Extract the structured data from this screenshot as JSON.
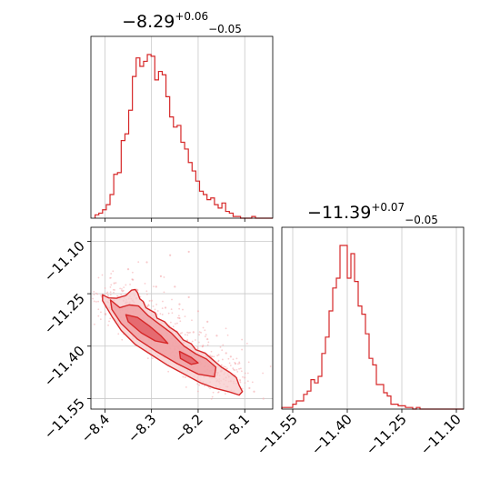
{
  "chart_data": [
    {
      "type": "histogram",
      "panel": "marginal-1",
      "title": {
        "main": "−8.29",
        "sup": "+0.06",
        "sub": "−0.05"
      },
      "xlim": [
        -8.43,
        -8.04
      ],
      "xticks": [
        -8.4,
        -8.3,
        -8.2,
        -8.1
      ],
      "x_tick_labels": [],
      "grid": true,
      "bins": [
        {
          "x": -8.417,
          "y": 2
        },
        {
          "x": -8.409,
          "y": 3
        },
        {
          "x": -8.401,
          "y": 5
        },
        {
          "x": -8.393,
          "y": 8
        },
        {
          "x": -8.385,
          "y": 14
        },
        {
          "x": -8.377,
          "y": 26
        },
        {
          "x": -8.369,
          "y": 27
        },
        {
          "x": -8.361,
          "y": 46
        },
        {
          "x": -8.353,
          "y": 50
        },
        {
          "x": -8.345,
          "y": 64
        },
        {
          "x": -8.337,
          "y": 84
        },
        {
          "x": -8.329,
          "y": 95
        },
        {
          "x": -8.321,
          "y": 90
        },
        {
          "x": -8.313,
          "y": 93
        },
        {
          "x": -8.305,
          "y": 97
        },
        {
          "x": -8.297,
          "y": 96
        },
        {
          "x": -8.289,
          "y": 82
        },
        {
          "x": -8.281,
          "y": 87
        },
        {
          "x": -8.273,
          "y": 85
        },
        {
          "x": -8.265,
          "y": 72
        },
        {
          "x": -8.257,
          "y": 60
        },
        {
          "x": -8.249,
          "y": 54
        },
        {
          "x": -8.241,
          "y": 55
        },
        {
          "x": -8.233,
          "y": 45
        },
        {
          "x": -8.225,
          "y": 41
        },
        {
          "x": -8.217,
          "y": 33
        },
        {
          "x": -8.209,
          "y": 28
        },
        {
          "x": -8.201,
          "y": 22
        },
        {
          "x": -8.193,
          "y": 16
        },
        {
          "x": -8.185,
          "y": 14
        },
        {
          "x": -8.177,
          "y": 11
        },
        {
          "x": -8.169,
          "y": 12
        },
        {
          "x": -8.161,
          "y": 8
        },
        {
          "x": -8.153,
          "y": 6
        },
        {
          "x": -8.145,
          "y": 9
        },
        {
          "x": -8.137,
          "y": 4
        },
        {
          "x": -8.129,
          "y": 3
        },
        {
          "x": -8.121,
          "y": 1
        },
        {
          "x": -8.113,
          "y": 1
        },
        {
          "x": -8.105,
          "y": 0
        },
        {
          "x": -8.097,
          "y": 0
        },
        {
          "x": -8.089,
          "y": 0
        },
        {
          "x": -8.081,
          "y": 1
        }
      ],
      "color": "#d62728"
    },
    {
      "type": "histogram",
      "panel": "marginal-2",
      "title": {
        "main": "−11.39",
        "sup": "+0.07",
        "sub": "−0.05"
      },
      "xlim": [
        -11.58,
        -11.08
      ],
      "xticks": [
        -11.55,
        -11.4,
        -11.25,
        -11.1
      ],
      "x_tick_labels": [
        "−11.55",
        "−11.40",
        "−11.25",
        "−11.10"
      ],
      "grid": true,
      "bins": [
        {
          "x": -11.575,
          "y": 1
        },
        {
          "x": -11.565,
          "y": 1
        },
        {
          "x": -11.555,
          "y": 1
        },
        {
          "x": -11.545,
          "y": 3
        },
        {
          "x": -11.535,
          "y": 5
        },
        {
          "x": -11.525,
          "y": 5
        },
        {
          "x": -11.515,
          "y": 9
        },
        {
          "x": -11.505,
          "y": 11
        },
        {
          "x": -11.495,
          "y": 18
        },
        {
          "x": -11.485,
          "y": 16
        },
        {
          "x": -11.475,
          "y": 20
        },
        {
          "x": -11.465,
          "y": 34
        },
        {
          "x": -11.455,
          "y": 44
        },
        {
          "x": -11.445,
          "y": 60
        },
        {
          "x": -11.435,
          "y": 74
        },
        {
          "x": -11.425,
          "y": 80
        },
        {
          "x": -11.415,
          "y": 100
        },
        {
          "x": -11.405,
          "y": 100
        },
        {
          "x": -11.395,
          "y": 80
        },
        {
          "x": -11.385,
          "y": 95
        },
        {
          "x": -11.375,
          "y": 78
        },
        {
          "x": -11.365,
          "y": 63
        },
        {
          "x": -11.355,
          "y": 58
        },
        {
          "x": -11.345,
          "y": 46
        },
        {
          "x": -11.335,
          "y": 31
        },
        {
          "x": -11.325,
          "y": 27
        },
        {
          "x": -11.315,
          "y": 15
        },
        {
          "x": -11.305,
          "y": 15
        },
        {
          "x": -11.295,
          "y": 10
        },
        {
          "x": -11.285,
          "y": 8
        },
        {
          "x": -11.275,
          "y": 3
        },
        {
          "x": -11.265,
          "y": 3
        },
        {
          "x": -11.255,
          "y": 2
        },
        {
          "x": -11.245,
          "y": 2
        },
        {
          "x": -11.235,
          "y": 1
        },
        {
          "x": -11.225,
          "y": 1
        },
        {
          "x": -11.215,
          "y": 0
        },
        {
          "x": -11.205,
          "y": 1
        },
        {
          "x": -11.195,
          "y": 0
        }
      ],
      "color": "#d62728"
    },
    {
      "type": "scatter",
      "panel": "joint",
      "xlim": [
        -8.43,
        -8.04
      ],
      "ylim": [
        -11.58,
        -11.06
      ],
      "xticks": [
        -8.4,
        -8.3,
        -8.2,
        -8.1
      ],
      "x_tick_labels": [
        "−8.4",
        "−8.3",
        "−8.2",
        "−8.1"
      ],
      "yticks": [
        -11.1,
        -11.25,
        -11.4,
        -11.55
      ],
      "y_tick_labels": [
        "−11.10",
        "−11.25",
        "−11.40",
        "−11.55"
      ],
      "grid": true,
      "color": "#d62728",
      "ridge": [
        {
          "x": -8.4,
          "y": -11.26
        },
        {
          "x": -8.37,
          "y": -11.3
        },
        {
          "x": -8.34,
          "y": -11.33
        },
        {
          "x": -8.3,
          "y": -11.37
        },
        {
          "x": -8.26,
          "y": -11.41
        },
        {
          "x": -8.22,
          "y": -11.45
        },
        {
          "x": -8.18,
          "y": -11.48
        },
        {
          "x": -8.14,
          "y": -11.51
        },
        {
          "x": -8.11,
          "y": -11.53
        }
      ],
      "contours": [
        {
          "level": "outer",
          "points": [
            {
              "x": -8.405,
              "y": -11.253
            },
            {
              "x": -8.392,
              "y": -11.262
            },
            {
              "x": -8.375,
              "y": -11.263
            },
            {
              "x": -8.355,
              "y": -11.255
            },
            {
              "x": -8.343,
              "y": -11.24
            },
            {
              "x": -8.335,
              "y": -11.238
            },
            {
              "x": -8.33,
              "y": -11.247
            },
            {
              "x": -8.325,
              "y": -11.265
            },
            {
              "x": -8.318,
              "y": -11.272
            },
            {
              "x": -8.312,
              "y": -11.29
            },
            {
              "x": -8.292,
              "y": -11.305
            },
            {
              "x": -8.288,
              "y": -11.32
            },
            {
              "x": -8.272,
              "y": -11.33
            },
            {
              "x": -8.262,
              "y": -11.345
            },
            {
              "x": -8.245,
              "y": -11.36
            },
            {
              "x": -8.232,
              "y": -11.382
            },
            {
              "x": -8.215,
              "y": -11.393
            },
            {
              "x": -8.205,
              "y": -11.41
            },
            {
              "x": -8.185,
              "y": -11.42
            },
            {
              "x": -8.165,
              "y": -11.443
            },
            {
              "x": -8.15,
              "y": -11.46
            },
            {
              "x": -8.132,
              "y": -11.475
            },
            {
              "x": -8.118,
              "y": -11.49
            },
            {
              "x": -8.112,
              "y": -11.512
            },
            {
              "x": -8.105,
              "y": -11.53
            },
            {
              "x": -8.112,
              "y": -11.54
            },
            {
              "x": -8.135,
              "y": -11.53
            },
            {
              "x": -8.165,
              "y": -11.52
            },
            {
              "x": -8.195,
              "y": -11.505
            },
            {
              "x": -8.23,
              "y": -11.48
            },
            {
              "x": -8.265,
              "y": -11.455
            },
            {
              "x": -8.3,
              "y": -11.425
            },
            {
              "x": -8.335,
              "y": -11.395
            },
            {
              "x": -8.365,
              "y": -11.355
            },
            {
              "x": -8.385,
              "y": -11.315
            },
            {
              "x": -8.405,
              "y": -11.27
            }
          ]
        },
        {
          "level": "middle",
          "points": [
            {
              "x": -8.388,
              "y": -11.268
            },
            {
              "x": -8.368,
              "y": -11.29
            },
            {
              "x": -8.348,
              "y": -11.282
            },
            {
              "x": -8.328,
              "y": -11.285
            },
            {
              "x": -8.308,
              "y": -11.312
            },
            {
              "x": -8.285,
              "y": -11.335
            },
            {
              "x": -8.258,
              "y": -11.362
            },
            {
              "x": -8.23,
              "y": -11.4
            },
            {
              "x": -8.205,
              "y": -11.422
            },
            {
              "x": -8.182,
              "y": -11.437
            },
            {
              "x": -8.162,
              "y": -11.46
            },
            {
              "x": -8.165,
              "y": -11.488
            },
            {
              "x": -8.2,
              "y": -11.48
            },
            {
              "x": -8.245,
              "y": -11.45
            },
            {
              "x": -8.29,
              "y": -11.415
            },
            {
              "x": -8.33,
              "y": -11.38
            },
            {
              "x": -8.365,
              "y": -11.335
            },
            {
              "x": -8.385,
              "y": -11.295
            }
          ]
        },
        {
          "level": "inner",
          "points": [
            {
              "x": -8.355,
              "y": -11.31
            },
            {
              "x": -8.33,
              "y": -11.318
            },
            {
              "x": -8.305,
              "y": -11.342
            },
            {
              "x": -8.28,
              "y": -11.37
            },
            {
              "x": -8.265,
              "y": -11.392
            },
            {
              "x": -8.292,
              "y": -11.385
            },
            {
              "x": -8.322,
              "y": -11.362
            },
            {
              "x": -8.35,
              "y": -11.33
            }
          ]
        },
        {
          "level": "inner-tail",
          "points": [
            {
              "x": -8.24,
              "y": -11.415
            },
            {
              "x": -8.215,
              "y": -11.432
            },
            {
              "x": -8.2,
              "y": -11.448
            },
            {
              "x": -8.215,
              "y": -11.452
            },
            {
              "x": -8.238,
              "y": -11.435
            }
          ]
        }
      ],
      "points": [
        {
          "x": -8.35,
          "y": -11.18
        },
        {
          "x": -8.31,
          "y": -11.16
        },
        {
          "x": -8.28,
          "y": -11.2
        },
        {
          "x": -8.25,
          "y": -11.23
        },
        {
          "x": -8.22,
          "y": -11.26
        },
        {
          "x": -8.2,
          "y": -11.3
        },
        {
          "x": -8.18,
          "y": -11.33
        },
        {
          "x": -8.16,
          "y": -11.37
        },
        {
          "x": -8.14,
          "y": -11.42
        },
        {
          "x": -8.12,
          "y": -11.45
        },
        {
          "x": -8.1,
          "y": -11.49
        },
        {
          "x": -8.08,
          "y": -11.53
        },
        {
          "x": -8.38,
          "y": -11.22
        },
        {
          "x": -8.33,
          "y": -11.24
        },
        {
          "x": -8.3,
          "y": -11.27
        },
        {
          "x": -8.27,
          "y": -11.29
        },
        {
          "x": -8.24,
          "y": -11.32
        },
        {
          "x": -8.21,
          "y": -11.36
        },
        {
          "x": -8.19,
          "y": -11.4
        },
        {
          "x": -8.17,
          "y": -11.43
        },
        {
          "x": -8.15,
          "y": -11.47
        },
        {
          "x": -8.13,
          "y": -11.5
        },
        {
          "x": -8.36,
          "y": -11.27
        },
        {
          "x": -8.32,
          "y": -11.3
        },
        {
          "x": -8.29,
          "y": -11.33
        },
        {
          "x": -8.26,
          "y": -11.36
        },
        {
          "x": -8.23,
          "y": -11.39
        },
        {
          "x": -8.2,
          "y": -11.43
        },
        {
          "x": -8.17,
          "y": -11.46
        },
        {
          "x": -8.14,
          "y": -11.49
        },
        {
          "x": -8.26,
          "y": -11.14
        },
        {
          "x": -8.22,
          "y": -11.13
        },
        {
          "x": -8.29,
          "y": -11.23
        },
        {
          "x": -8.34,
          "y": -11.21
        },
        {
          "x": -8.24,
          "y": -11.28
        },
        {
          "x": -8.18,
          "y": -11.38
        },
        {
          "x": -8.13,
          "y": -11.43
        },
        {
          "x": -8.09,
          "y": -11.52
        },
        {
          "x": -8.06,
          "y": -11.55
        },
        {
          "x": -8.39,
          "y": -11.29
        },
        {
          "x": -8.31,
          "y": -11.35
        },
        {
          "x": -8.28,
          "y": -11.38
        },
        {
          "x": -8.25,
          "y": -11.41
        },
        {
          "x": -8.21,
          "y": -11.46
        },
        {
          "x": -8.16,
          "y": -11.5
        }
      ]
    }
  ]
}
